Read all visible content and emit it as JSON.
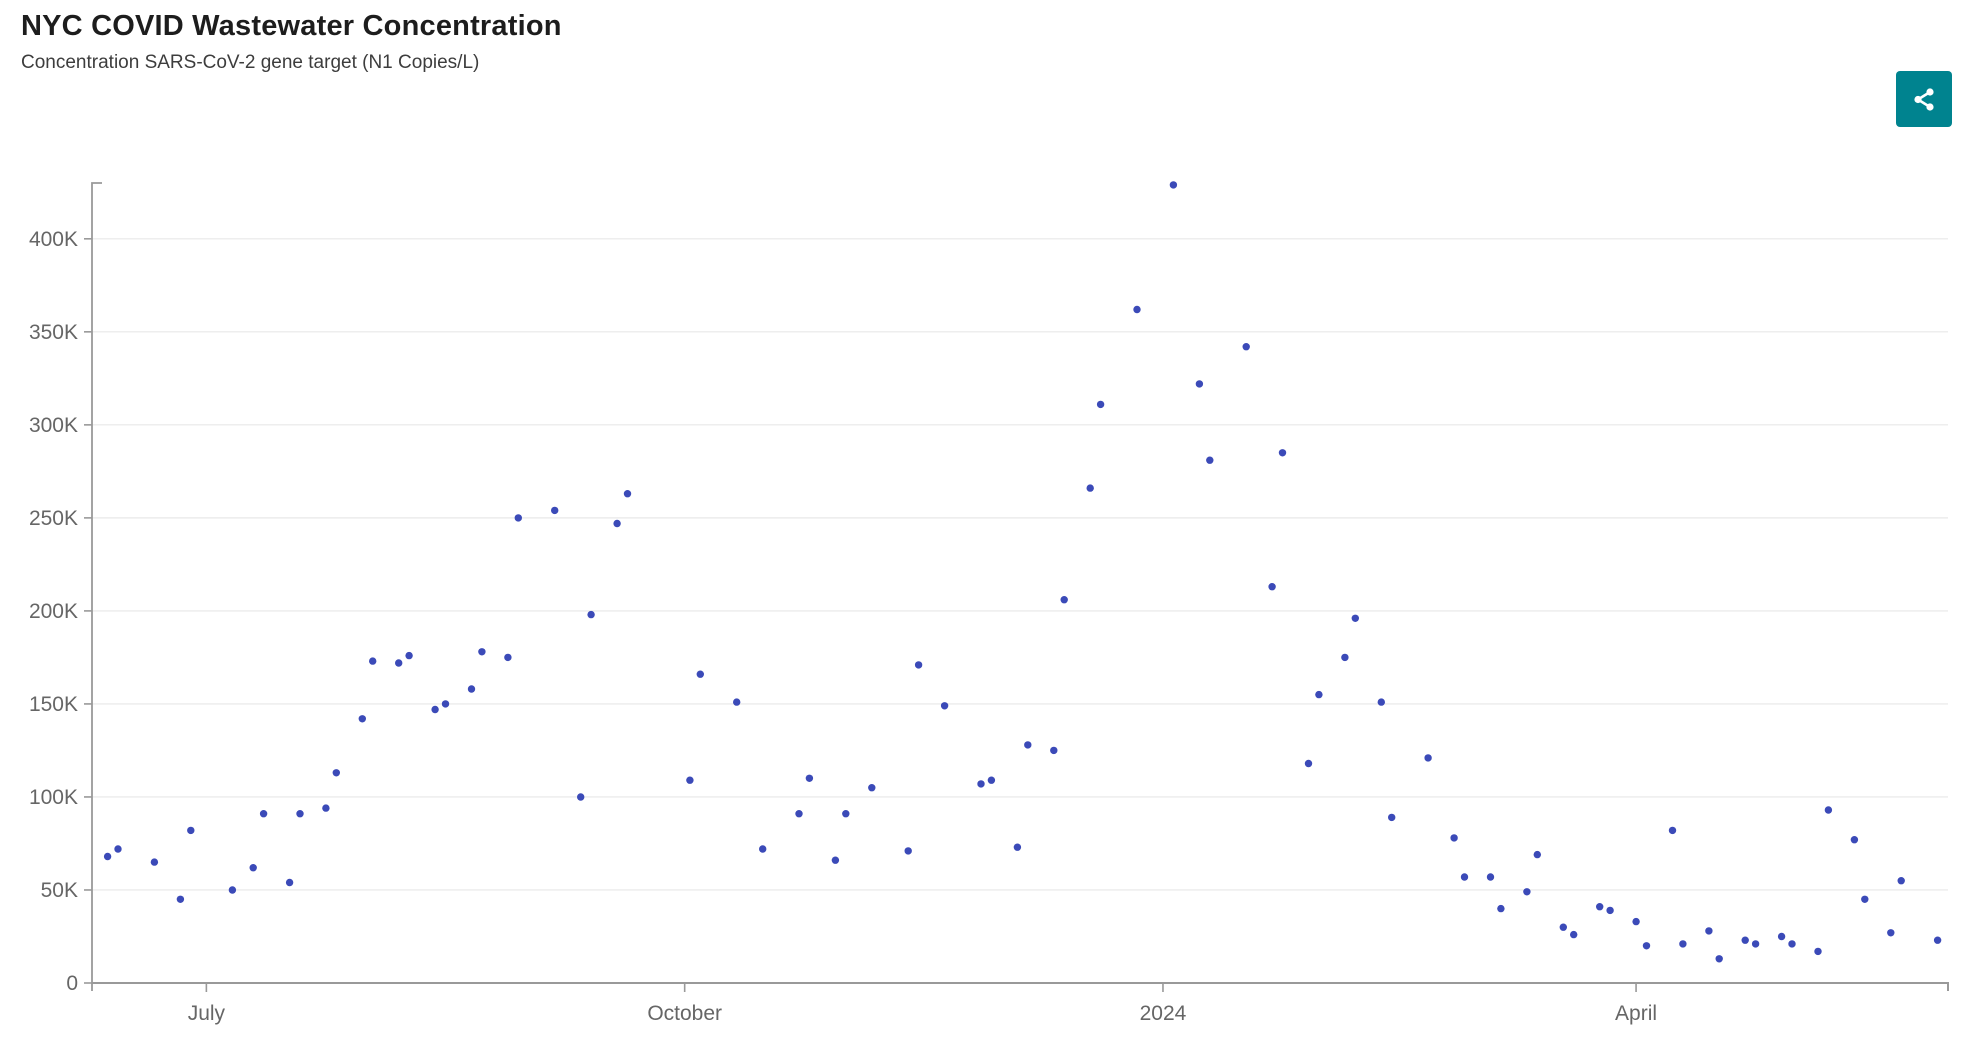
{
  "header": {
    "title": "NYC COVID Wastewater Concentration",
    "subtitle": "Concentration SARS-CoV-2 gene target (N1 Copies/L)"
  },
  "toolbar": {
    "share_button_color": "#00838f",
    "share_icon_color": "#ffffff"
  },
  "chart_data": {
    "type": "scatter",
    "title": "NYC COVID Wastewater Concentration",
    "xlabel": "",
    "ylabel": "Concentration SARS-CoV-2 gene target (N1 Copies/L)",
    "point_color": "#3b4ab8",
    "grid": true,
    "grid_color": "#ececec",
    "axis_color": "#999999",
    "label_color": "#666666",
    "legend": "none",
    "x_axis": {
      "type": "time",
      "start": "2023-06-09",
      "end": "2024-05-31",
      "ticks": [
        {
          "date": "2023-07-01",
          "label": "July"
        },
        {
          "date": "2023-10-01",
          "label": "October"
        },
        {
          "date": "2024-01-01",
          "label": "2024"
        },
        {
          "date": "2024-04-01",
          "label": "April"
        }
      ]
    },
    "y_axis": {
      "min": 0,
      "max": 430000,
      "tick_step": 50000,
      "tick_labels": [
        "0",
        "50K",
        "100K",
        "150K",
        "200K",
        "250K",
        "300K",
        "350K",
        "400K"
      ]
    },
    "points": [
      {
        "date": "2023-06-12",
        "value": 68000
      },
      {
        "date": "2023-06-14",
        "value": 72000
      },
      {
        "date": "2023-06-21",
        "value": 65000
      },
      {
        "date": "2023-06-26",
        "value": 45000
      },
      {
        "date": "2023-06-28",
        "value": 82000
      },
      {
        "date": "2023-07-06",
        "value": 50000
      },
      {
        "date": "2023-07-10",
        "value": 62000
      },
      {
        "date": "2023-07-12",
        "value": 91000
      },
      {
        "date": "2023-07-17",
        "value": 54000
      },
      {
        "date": "2023-07-19",
        "value": 91000
      },
      {
        "date": "2023-07-24",
        "value": 94000
      },
      {
        "date": "2023-07-26",
        "value": 113000
      },
      {
        "date": "2023-07-31",
        "value": 142000
      },
      {
        "date": "2023-08-02",
        "value": 173000
      },
      {
        "date": "2023-08-07",
        "value": 172000
      },
      {
        "date": "2023-08-09",
        "value": 176000
      },
      {
        "date": "2023-08-14",
        "value": 147000
      },
      {
        "date": "2023-08-16",
        "value": 150000
      },
      {
        "date": "2023-08-21",
        "value": 158000
      },
      {
        "date": "2023-08-23",
        "value": 178000
      },
      {
        "date": "2023-08-28",
        "value": 175000
      },
      {
        "date": "2023-08-30",
        "value": 250000
      },
      {
        "date": "2023-09-06",
        "value": 254000
      },
      {
        "date": "2023-09-11",
        "value": 100000
      },
      {
        "date": "2023-09-13",
        "value": 198000
      },
      {
        "date": "2023-09-18",
        "value": 247000
      },
      {
        "date": "2023-09-20",
        "value": 263000
      },
      {
        "date": "2023-10-02",
        "value": 109000
      },
      {
        "date": "2023-10-04",
        "value": 166000
      },
      {
        "date": "2023-10-11",
        "value": 151000
      },
      {
        "date": "2023-10-16",
        "value": 72000
      },
      {
        "date": "2023-10-23",
        "value": 91000
      },
      {
        "date": "2023-10-25",
        "value": 110000
      },
      {
        "date": "2023-10-30",
        "value": 66000
      },
      {
        "date": "2023-11-01",
        "value": 91000
      },
      {
        "date": "2023-11-06",
        "value": 105000
      },
      {
        "date": "2023-11-13",
        "value": 71000
      },
      {
        "date": "2023-11-15",
        "value": 171000
      },
      {
        "date": "2023-11-20",
        "value": 149000
      },
      {
        "date": "2023-11-27",
        "value": 107000
      },
      {
        "date": "2023-11-29",
        "value": 109000
      },
      {
        "date": "2023-12-04",
        "value": 73000
      },
      {
        "date": "2023-12-06",
        "value": 128000
      },
      {
        "date": "2023-12-11",
        "value": 125000
      },
      {
        "date": "2023-12-13",
        "value": 206000
      },
      {
        "date": "2023-12-18",
        "value": 266000
      },
      {
        "date": "2023-12-20",
        "value": 311000
      },
      {
        "date": "2023-12-27",
        "value": 362000
      },
      {
        "date": "2024-01-03",
        "value": 429000
      },
      {
        "date": "2024-01-08",
        "value": 322000
      },
      {
        "date": "2024-01-10",
        "value": 281000
      },
      {
        "date": "2024-01-17",
        "value": 342000
      },
      {
        "date": "2024-01-22",
        "value": 213000
      },
      {
        "date": "2024-01-24",
        "value": 285000
      },
      {
        "date": "2024-01-29",
        "value": 118000
      },
      {
        "date": "2024-01-31",
        "value": 155000
      },
      {
        "date": "2024-02-05",
        "value": 175000
      },
      {
        "date": "2024-02-07",
        "value": 196000
      },
      {
        "date": "2024-02-12",
        "value": 151000
      },
      {
        "date": "2024-02-14",
        "value": 89000
      },
      {
        "date": "2024-02-21",
        "value": 121000
      },
      {
        "date": "2024-02-26",
        "value": 78000
      },
      {
        "date": "2024-02-28",
        "value": 57000
      },
      {
        "date": "2024-03-04",
        "value": 57000
      },
      {
        "date": "2024-03-06",
        "value": 40000
      },
      {
        "date": "2024-03-11",
        "value": 49000
      },
      {
        "date": "2024-03-13",
        "value": 69000
      },
      {
        "date": "2024-03-18",
        "value": 30000
      },
      {
        "date": "2024-03-20",
        "value": 26000
      },
      {
        "date": "2024-03-25",
        "value": 41000
      },
      {
        "date": "2024-03-27",
        "value": 39000
      },
      {
        "date": "2024-04-01",
        "value": 33000
      },
      {
        "date": "2024-04-03",
        "value": 20000
      },
      {
        "date": "2024-04-08",
        "value": 82000
      },
      {
        "date": "2024-04-10",
        "value": 21000
      },
      {
        "date": "2024-04-15",
        "value": 28000
      },
      {
        "date": "2024-04-17",
        "value": 13000
      },
      {
        "date": "2024-04-22",
        "value": 23000
      },
      {
        "date": "2024-04-24",
        "value": 21000
      },
      {
        "date": "2024-04-29",
        "value": 25000
      },
      {
        "date": "2024-05-01",
        "value": 21000
      },
      {
        "date": "2024-05-06",
        "value": 17000
      },
      {
        "date": "2024-05-08",
        "value": 93000
      },
      {
        "date": "2024-05-13",
        "value": 77000
      },
      {
        "date": "2024-05-15",
        "value": 45000
      },
      {
        "date": "2024-05-20",
        "value": 27000
      },
      {
        "date": "2024-05-22",
        "value": 55000
      },
      {
        "date": "2024-05-29",
        "value": 23000
      }
    ]
  }
}
